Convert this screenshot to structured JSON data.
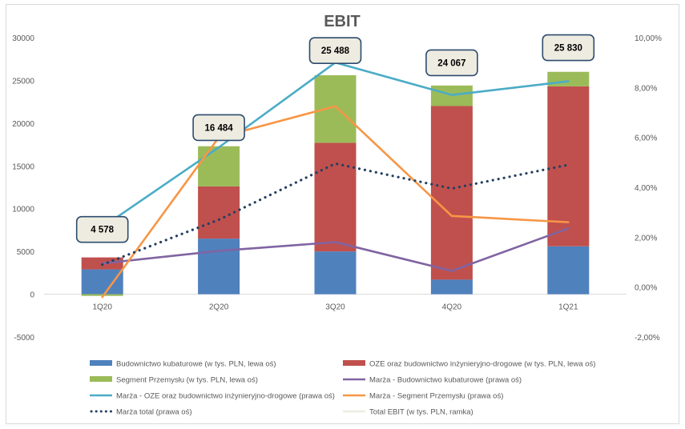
{
  "chart_data": {
    "type": "bar",
    "title": "EBIT",
    "categories": [
      "1Q20",
      "2Q20",
      "3Q20",
      "4Q20",
      "1Q21"
    ],
    "left_axis": {
      "ylim": [
        -5000,
        30000
      ],
      "ticks": [
        "-5000",
        "0",
        "5000",
        "10000",
        "15000",
        "20000",
        "25000",
        "30000"
      ],
      "tick_values": [
        -5000,
        0,
        5000,
        10000,
        15000,
        20000,
        25000,
        30000
      ]
    },
    "right_axis": {
      "ylim": [
        -2,
        10
      ],
      "ticks": [
        "-2,00%",
        "0,00%",
        "2,00%",
        "4,00%",
        "6,00%",
        "8,00%",
        "10,00%"
      ],
      "tick_values": [
        -2,
        0,
        2,
        4,
        6,
        8,
        10
      ]
    },
    "grid": false,
    "legend_position": "bottom",
    "bar_series": [
      {
        "name": "Budownictwo kubaturowe (w tys. PLN, lewa oś)",
        "color": "#4f81bd",
        "values": [
          2900,
          6500,
          5000,
          1700,
          5600
        ]
      },
      {
        "name": "OZE oraz budownictwo inżynieryjno-drogowe (w tys. PLN, lewa oś)",
        "color": "#c0504d",
        "values": [
          1400,
          6100,
          12700,
          20300,
          18700
        ]
      },
      {
        "name": "Segment Przemysłu (w tys. PLN, lewa oś)",
        "color": "#9bbb59",
        "values": [
          -200,
          4700,
          7900,
          2400,
          1700
        ]
      }
    ],
    "line_series": [
      {
        "name": "Marża - Budownictwo kubaturowe (prawa oś)",
        "color": "#8064a2",
        "style": "solid",
        "values": [
          0.95,
          1.45,
          1.8,
          0.65,
          2.35
        ]
      },
      {
        "name": "Marża - OZE oraz budownictwo inżynieryjno-drogowe (prawa oś)",
        "color": "#4bacc6",
        "style": "solid",
        "values": [
          2.4,
          5.6,
          9.0,
          7.7,
          8.25
        ]
      },
      {
        "name": "Marża - Segment Przemysłu (prawa oś)",
        "color": "#f79646",
        "style": "solid",
        "values": [
          -0.4,
          6.0,
          7.25,
          2.85,
          2.6
        ]
      },
      {
        "name": "Marża total (prawa oś)",
        "color": "#243f60",
        "style": "dotted",
        "values": [
          0.9,
          2.7,
          4.95,
          3.95,
          4.9
        ]
      }
    ],
    "total_series": {
      "name": "Total EBIT (w tys. PLN, ramka)",
      "color": "#eeece1",
      "values": [
        4578,
        16484,
        25488,
        24067,
        25830
      ],
      "labels": [
        "4 578",
        "16 484",
        "25 488",
        "24 067",
        "25 830"
      ]
    },
    "legend": [
      {
        "name": "Budownictwo kubaturowe (w tys. PLN, lewa oś)",
        "color": "#4f81bd",
        "kind": "box"
      },
      {
        "name": "OZE oraz budownictwo inżynieryjno-drogowe (w tys. PLN, lewa oś)",
        "color": "#c0504d",
        "kind": "box"
      },
      {
        "name": "Segment Przemysłu (w tys. PLN, lewa oś)",
        "color": "#9bbb59",
        "kind": "box"
      },
      {
        "name": "Marża - Budownictwo kubaturowe (prawa oś)",
        "color": "#8064a2",
        "kind": "line"
      },
      {
        "name": "Marża - OZE oraz budownictwo inżynieryjno-drogowe (prawa oś)",
        "color": "#4bacc6",
        "kind": "line"
      },
      {
        "name": "Marża - Segment Przemysłu (prawa oś)",
        "color": "#f79646",
        "kind": "line"
      },
      {
        "name": "Marża total (prawa oś)",
        "color": "#243f60",
        "kind": "dots"
      },
      {
        "name": "Total EBIT (w tys. PLN, ramka)",
        "color": "#eeece1",
        "kind": "line"
      }
    ]
  }
}
